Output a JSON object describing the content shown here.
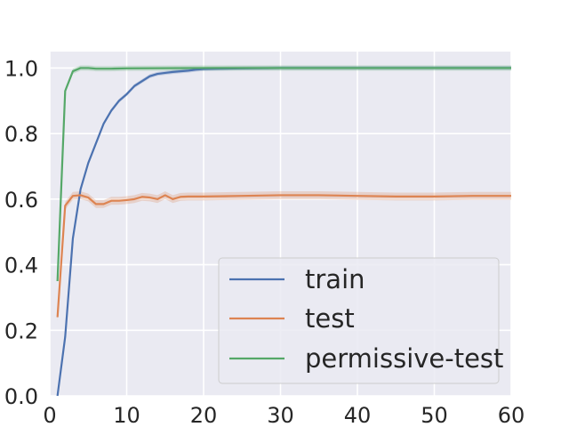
{
  "chart_data": {
    "type": "line",
    "title": "",
    "xlabel": "",
    "ylabel": "",
    "xlim": [
      0,
      60
    ],
    "ylim": [
      0,
      1.05
    ],
    "xticks": [
      0,
      10,
      20,
      30,
      40,
      50,
      60
    ],
    "xtick_labels": [
      "0",
      "10",
      "20",
      "30",
      "40",
      "50",
      "60"
    ],
    "yticks": [
      0.0,
      0.2,
      0.4,
      0.6,
      0.8,
      1.0
    ],
    "ytick_labels": [
      "0.0",
      "0.2",
      "0.4",
      "0.6",
      "0.8",
      "1.0"
    ],
    "grid": true,
    "legend_position": "lower-right",
    "background": "#eaeaf2",
    "series": [
      {
        "name": "train",
        "color": "#4c72b0",
        "x": [
          1,
          2,
          3,
          4,
          5,
          6,
          7,
          8,
          9,
          10,
          11,
          12,
          13,
          14,
          15,
          16,
          17,
          18,
          19,
          20,
          22,
          25,
          30,
          35,
          40,
          50,
          60
        ],
        "y": [
          0.0,
          0.18,
          0.48,
          0.63,
          0.71,
          0.77,
          0.83,
          0.87,
          0.9,
          0.92,
          0.945,
          0.96,
          0.975,
          0.982,
          0.985,
          0.988,
          0.99,
          0.992,
          0.995,
          0.997,
          0.998,
          0.999,
          1.0,
          1.0,
          1.0,
          1.0,
          1.0
        ],
        "band": 0.006
      },
      {
        "name": "test",
        "color": "#dd8452",
        "x": [
          1,
          2,
          3,
          4,
          5,
          6,
          7,
          8,
          9,
          10,
          11,
          12,
          13,
          14,
          15,
          16,
          17,
          18,
          20,
          25,
          30,
          35,
          40,
          45,
          50,
          55,
          60
        ],
        "y": [
          0.24,
          0.58,
          0.61,
          0.612,
          0.605,
          0.585,
          0.585,
          0.595,
          0.595,
          0.597,
          0.6,
          0.607,
          0.605,
          0.6,
          0.612,
          0.6,
          0.607,
          0.608,
          0.608,
          0.61,
          0.612,
          0.612,
          0.61,
          0.608,
          0.608,
          0.61,
          0.61
        ],
        "band": 0.012
      },
      {
        "name": "permissive-test",
        "color": "#55a868",
        "x": [
          1,
          2,
          3,
          4,
          5,
          6,
          8,
          10,
          20,
          30,
          40,
          50,
          60
        ],
        "y": [
          0.35,
          0.93,
          0.99,
          1.0,
          1.0,
          0.998,
          0.998,
          0.999,
          1.0,
          1.0,
          1.0,
          1.0,
          1.0
        ],
        "band": 0.008
      }
    ]
  }
}
